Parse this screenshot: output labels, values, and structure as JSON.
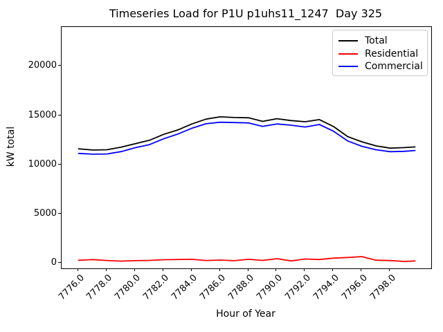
{
  "title": "Timeseries Load for P1U p1uhs11_1247  Day 325",
  "axes": {
    "xlabel": "Hour of Year",
    "ylabel": "kW total"
  },
  "legend": {
    "entries": [
      "Total",
      "Residential",
      "Commercial"
    ],
    "position": "upper right"
  },
  "chart_data": {
    "type": "line",
    "title": "Timeseries Load for P1U p1uhs11_1247  Day 325",
    "xlabel": "Hour of Year",
    "ylabel": "kW total",
    "xlim": [
      7774.8,
      7800.9
    ],
    "ylim": [
      -500,
      24000
    ],
    "grid": false,
    "legend_position": "upper right",
    "background": "#ffffff",
    "x_ticks": [
      7776,
      7778,
      7780,
      7782,
      7784,
      7786,
      7788,
      7790,
      7792,
      7794,
      7796,
      7798
    ],
    "x_tick_labels": [
      "7776.0",
      "7778.0",
      "7780.0",
      "7782.0",
      "7784.0",
      "7786.0",
      "7788.0",
      "7790.0",
      "7792.0",
      "7794.0",
      "7796.0",
      "7798.0"
    ],
    "y_ticks": [
      0,
      5000,
      10000,
      15000,
      20000
    ],
    "y_tick_labels": [
      "0",
      "5000",
      "10000",
      "15000",
      "20000"
    ],
    "x": [
      7776,
      7777,
      7778,
      7779,
      7780,
      7781,
      7782,
      7783,
      7784,
      7785,
      7786,
      7787,
      7788,
      7789,
      7790,
      7791,
      7792,
      7793,
      7794,
      7795,
      7796,
      7797,
      7798,
      7799,
      7799.75
    ],
    "series": [
      {
        "name": "Total",
        "color": "#000000",
        "values": [
          11630,
          11510,
          11540,
          11800,
          12150,
          12500,
          13100,
          13550,
          14160,
          14650,
          14880,
          14810,
          14780,
          14420,
          14690,
          14500,
          14380,
          14600,
          13900,
          12870,
          12350,
          11930,
          11700,
          11760,
          11830
        ]
      },
      {
        "name": "Residential",
        "color": "#ff0000",
        "values": [
          320,
          390,
          300,
          240,
          280,
          310,
          380,
          400,
          420,
          300,
          340,
          280,
          420,
          310,
          480,
          260,
          450,
          400,
          540,
          600,
          690,
          330,
          290,
          200,
          250
        ]
      },
      {
        "name": "Commercial",
        "color": "#0000ff",
        "values": [
          11170,
          11090,
          11110,
          11350,
          11750,
          12060,
          12650,
          13130,
          13720,
          14180,
          14330,
          14300,
          14260,
          13910,
          14160,
          14030,
          13850,
          14100,
          13420,
          12430,
          11890,
          11540,
          11340,
          11380,
          11460
        ]
      }
    ]
  }
}
